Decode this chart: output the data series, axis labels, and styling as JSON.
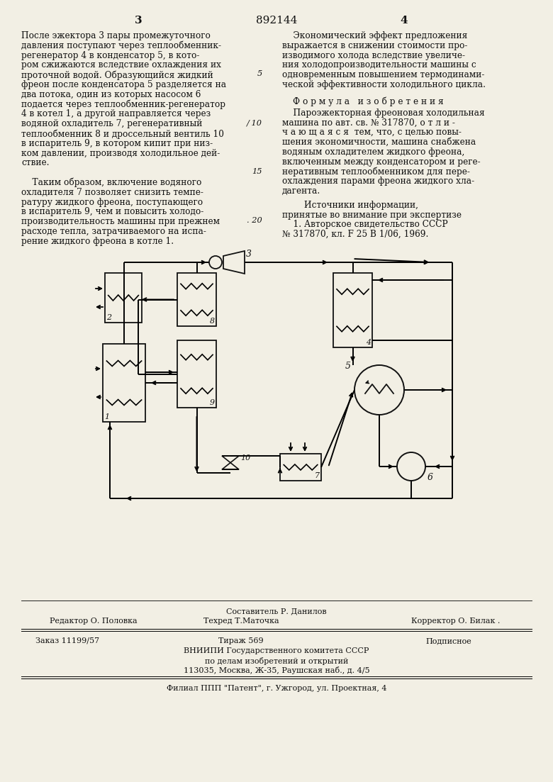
{
  "page_color": "#f2efe4",
  "text_color": "#111111",
  "header_number": "892144",
  "page_left": "3",
  "page_right": "4",
  "col1_lines": [
    "После эжектора 3 пары промежуточного",
    "давления поступают через теплообменник-",
    "регенератор 4 в конденсатор 5, в кото-",
    "ром сжижаются вследствие охлаждения их",
    "проточной водой. Образующийся жидкий",
    "фреон после конденсатора 5 разделяется на",
    "два потока, один из которых насосом 6",
    "подается через теплообменник-регенератор",
    "4 в котел 1, а другой направляется через",
    "водяной охладитель 7, регенеративный",
    "теплообменник 8 и дроссельный вентиль 10",
    "в испаритель 9, в котором кипит при низ-",
    "ком давлении, производя холодильное дей-",
    "ствие.",
    "",
    "    Таким образом, включение водяного",
    "охладителя 7 позволяет снизить темпе-",
    "ратуру жидкого фреона, поступающего",
    "в испаритель 9, чем и повысить холодо-",
    "производительность машины при прежнем",
    "расходе тепла, затрачиваемого на испа-",
    "рение жидкого фреона в котле 1."
  ],
  "col2_lines": [
    "    Экономический эффект предложения",
    "выражается в снижении стоимости про-",
    "изводимого холода вследствие увеличе-",
    "ния холодопроизводительности машины с",
    "одновременным повышением термодинами-",
    "ческой эффективности холодильного цикла."
  ],
  "formula_title": "Ф о р м у л а   и з о б р е т е н и я",
  "formula_lines": [
    "    Пароэжекторная фреоновая холодильная",
    "машина по авт. св. № 317870, о т л и -",
    "ч а ю щ а я с я  тем, что, с целью повы-",
    "шения экономичности, машина снабжена",
    "водяным охладителем жидкого фреона,",
    "включенным между конденсатором и реге-",
    "неративным теплообменником для пере-",
    "охлаждения парами фреона жидкого хла-",
    "дагента."
  ],
  "src_title": "        Источники информации,",
  "src_lines": [
    "принятые во внимание при экспертизе",
    "    1. Авторское свидетельство СССР",
    "№ 317870, кл. F 25 В 1/06, 1969."
  ],
  "lnums": [
    "5",
    "/ 10",
    "15",
    ". 20"
  ],
  "lnum_rows": [
    4,
    9,
    14,
    19
  ],
  "foot1": "Составитель Р. Данилов",
  "foot2l": "Редактор О. Половка",
  "foot2m": "Техред Т.Маточка",
  "foot2r": "Корректор О. Билак .",
  "foot3l": "Заказ 11199/57",
  "foot3m": "Тираж 569",
  "foot3r": "Подписное",
  "foot4": "ВНИИПИ Государственного комитета СССР",
  "foot5": "по делам изобретений и открытий",
  "foot6": "113035, Москва, Ж-35, Раушская наб., д. 4/5",
  "foot7": "Филиал ППП \"Патент\", г. Ужгород, ул. Проектная, 4"
}
